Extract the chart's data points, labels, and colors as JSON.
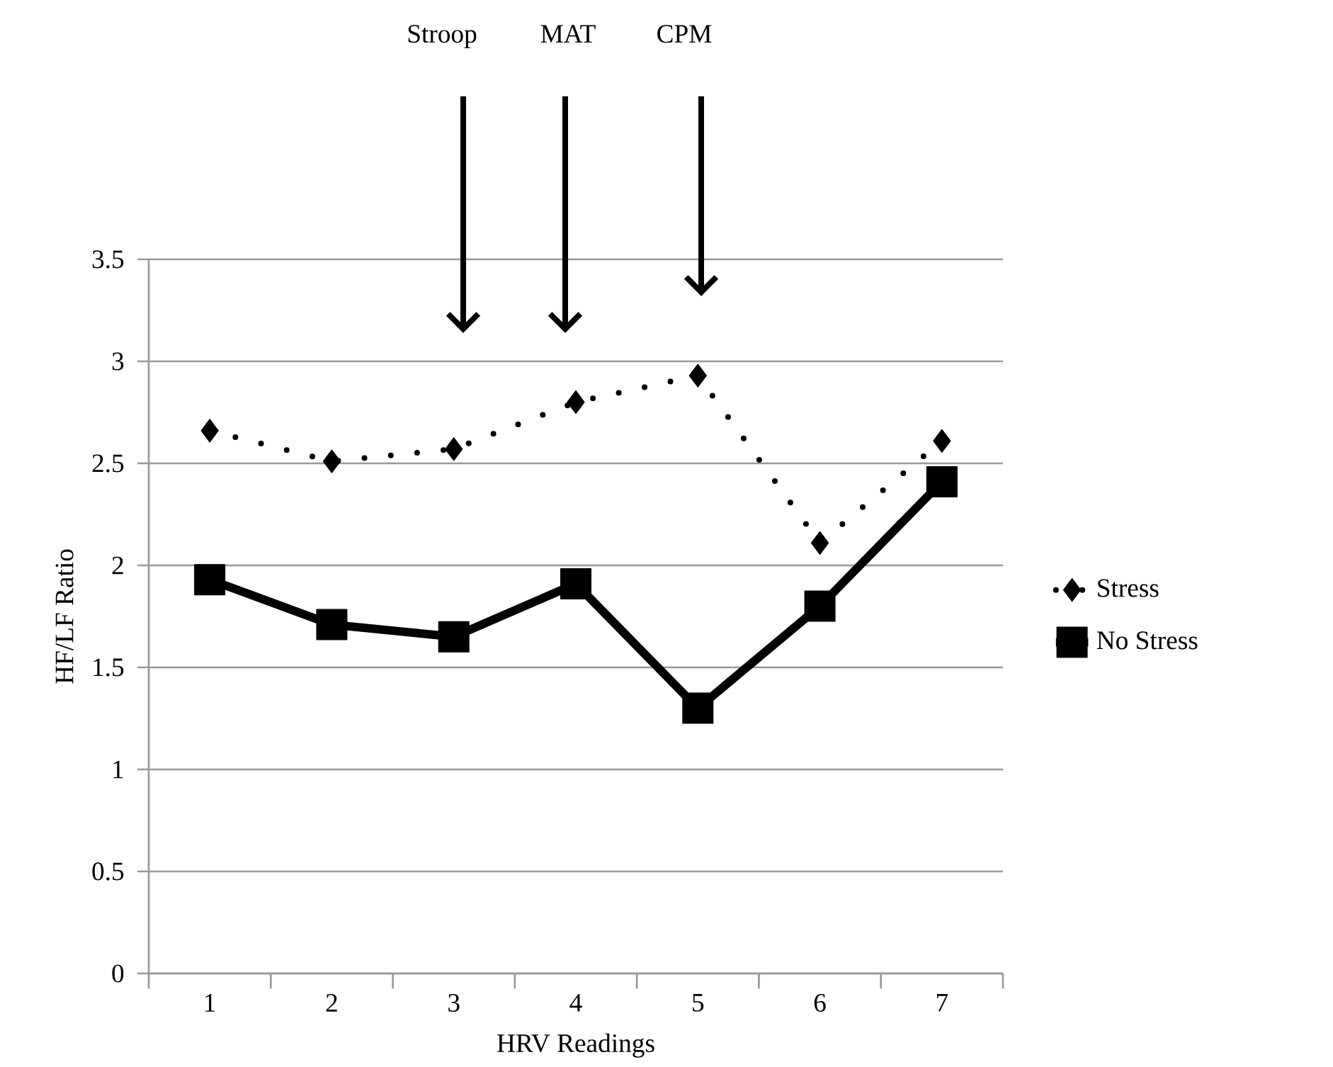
{
  "chart_data": {
    "type": "line",
    "xlabel": "HRV Readings",
    "ylabel": "HF/LF Ratio",
    "categories": [
      "1",
      "2",
      "3",
      "4",
      "5",
      "6",
      "7"
    ],
    "series": [
      {
        "name": "Stress",
        "color": "#000000",
        "marker": "diamond",
        "line_style": "dotted",
        "values": [
          2.66,
          2.51,
          2.57,
          2.8,
          2.93,
          2.11,
          2.61
        ]
      },
      {
        "name": "No Stress",
        "color": "#000000",
        "marker": "square",
        "line_style": "solid",
        "values": [
          1.93,
          1.71,
          1.65,
          1.91,
          1.3,
          1.8,
          2.41
        ]
      }
    ],
    "ylim": [
      0,
      3.5
    ],
    "yticks": [
      0,
      0.5,
      1,
      1.5,
      2,
      2.5,
      3,
      3.5
    ],
    "grid": "y",
    "legend": "right",
    "annotations": [
      "Stroop",
      "MAT",
      "CPM"
    ]
  }
}
